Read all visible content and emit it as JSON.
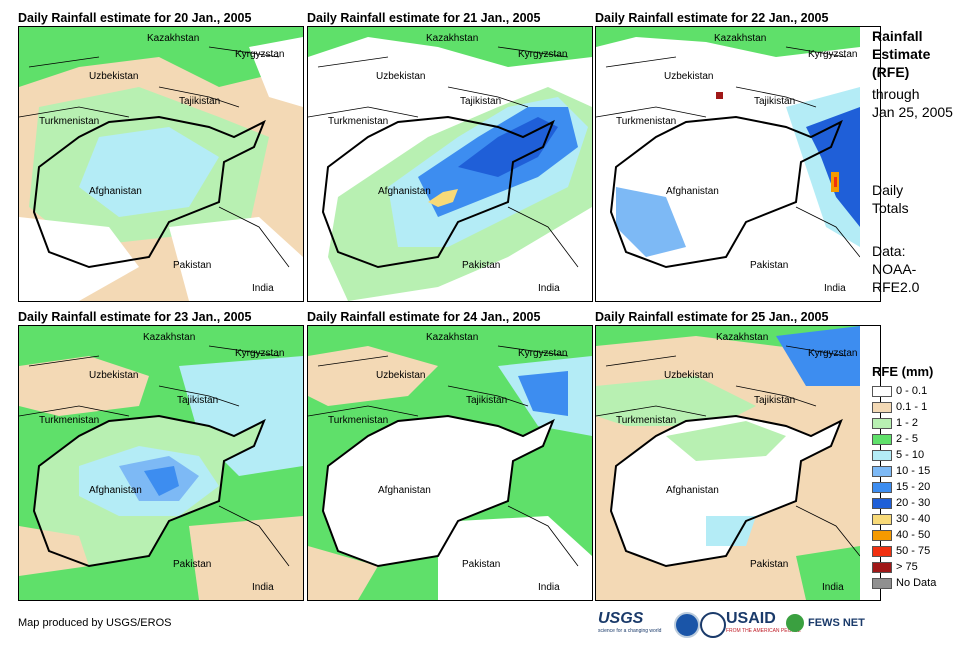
{
  "panels": [
    {
      "title": "Daily Rainfall estimate for 20 Jan., 2005"
    },
    {
      "title": "Daily Rainfall estimate for 21 Jan., 2005"
    },
    {
      "title": "Daily Rainfall estimate for 22 Jan., 2005"
    },
    {
      "title": "Daily Rainfall estimate for 23 Jan., 2005"
    },
    {
      "title": "Daily Rainfall estimate for 24 Jan., 2005"
    },
    {
      "title": "Daily Rainfall estimate for 25 Jan., 2005"
    }
  ],
  "map_labels": {
    "kazakhstan": "Kazakhstan",
    "kyrgyzstan": "Kyrgyzstan",
    "uzbekistan": "Uzbekistan",
    "tajikistan": "Tajikistan",
    "turkmenistan": "Turkmenistan",
    "afghanistan": "Afghanistan",
    "pakistan": "Pakistan",
    "india": "India"
  },
  "side": {
    "title_lines": [
      "Rainfall",
      "Estimate",
      "(RFE)"
    ],
    "through": "through",
    "date": "Jan 25, 2005",
    "daily": "Daily",
    "totals": "Totals",
    "data_label": "Data:",
    "source_1": "NOAA-",
    "source_2": "RFE2.0"
  },
  "legend": {
    "title": "RFE (mm)",
    "items": [
      {
        "label": "0 - 0.1",
        "color": "#ffffff"
      },
      {
        "label": "0.1 - 1",
        "color": "#f3d9b5"
      },
      {
        "label": "1 - 2",
        "color": "#b8f0b2"
      },
      {
        "label": "2 - 5",
        "color": "#5fe06a"
      },
      {
        "label": "5 - 10",
        "color": "#b4ecf6"
      },
      {
        "label": "10 - 15",
        "color": "#7db9f5"
      },
      {
        "label": "15 - 20",
        "color": "#3d8df0"
      },
      {
        "label": "20 - 30",
        "color": "#1f5fd8"
      },
      {
        "label": "30 - 40",
        "color": "#f8da78"
      },
      {
        "label": "40 - 50",
        "color": "#f59a00"
      },
      {
        "label": "50 - 75",
        "color": "#f03010"
      },
      {
        "label": "> 75",
        "color": "#a01818"
      },
      {
        "label": "No Data",
        "color": "#909090"
      }
    ]
  },
  "footer": {
    "credit": "Map produced by USGS/EROS",
    "logo_usgs": "USGS",
    "logo_usgs_tag": "science for a changing world",
    "logo_usaid": "USAID",
    "logo_usaid_tag": "FROM THE AMERICAN PEOPLE",
    "logo_fews": "FEWS NET"
  }
}
